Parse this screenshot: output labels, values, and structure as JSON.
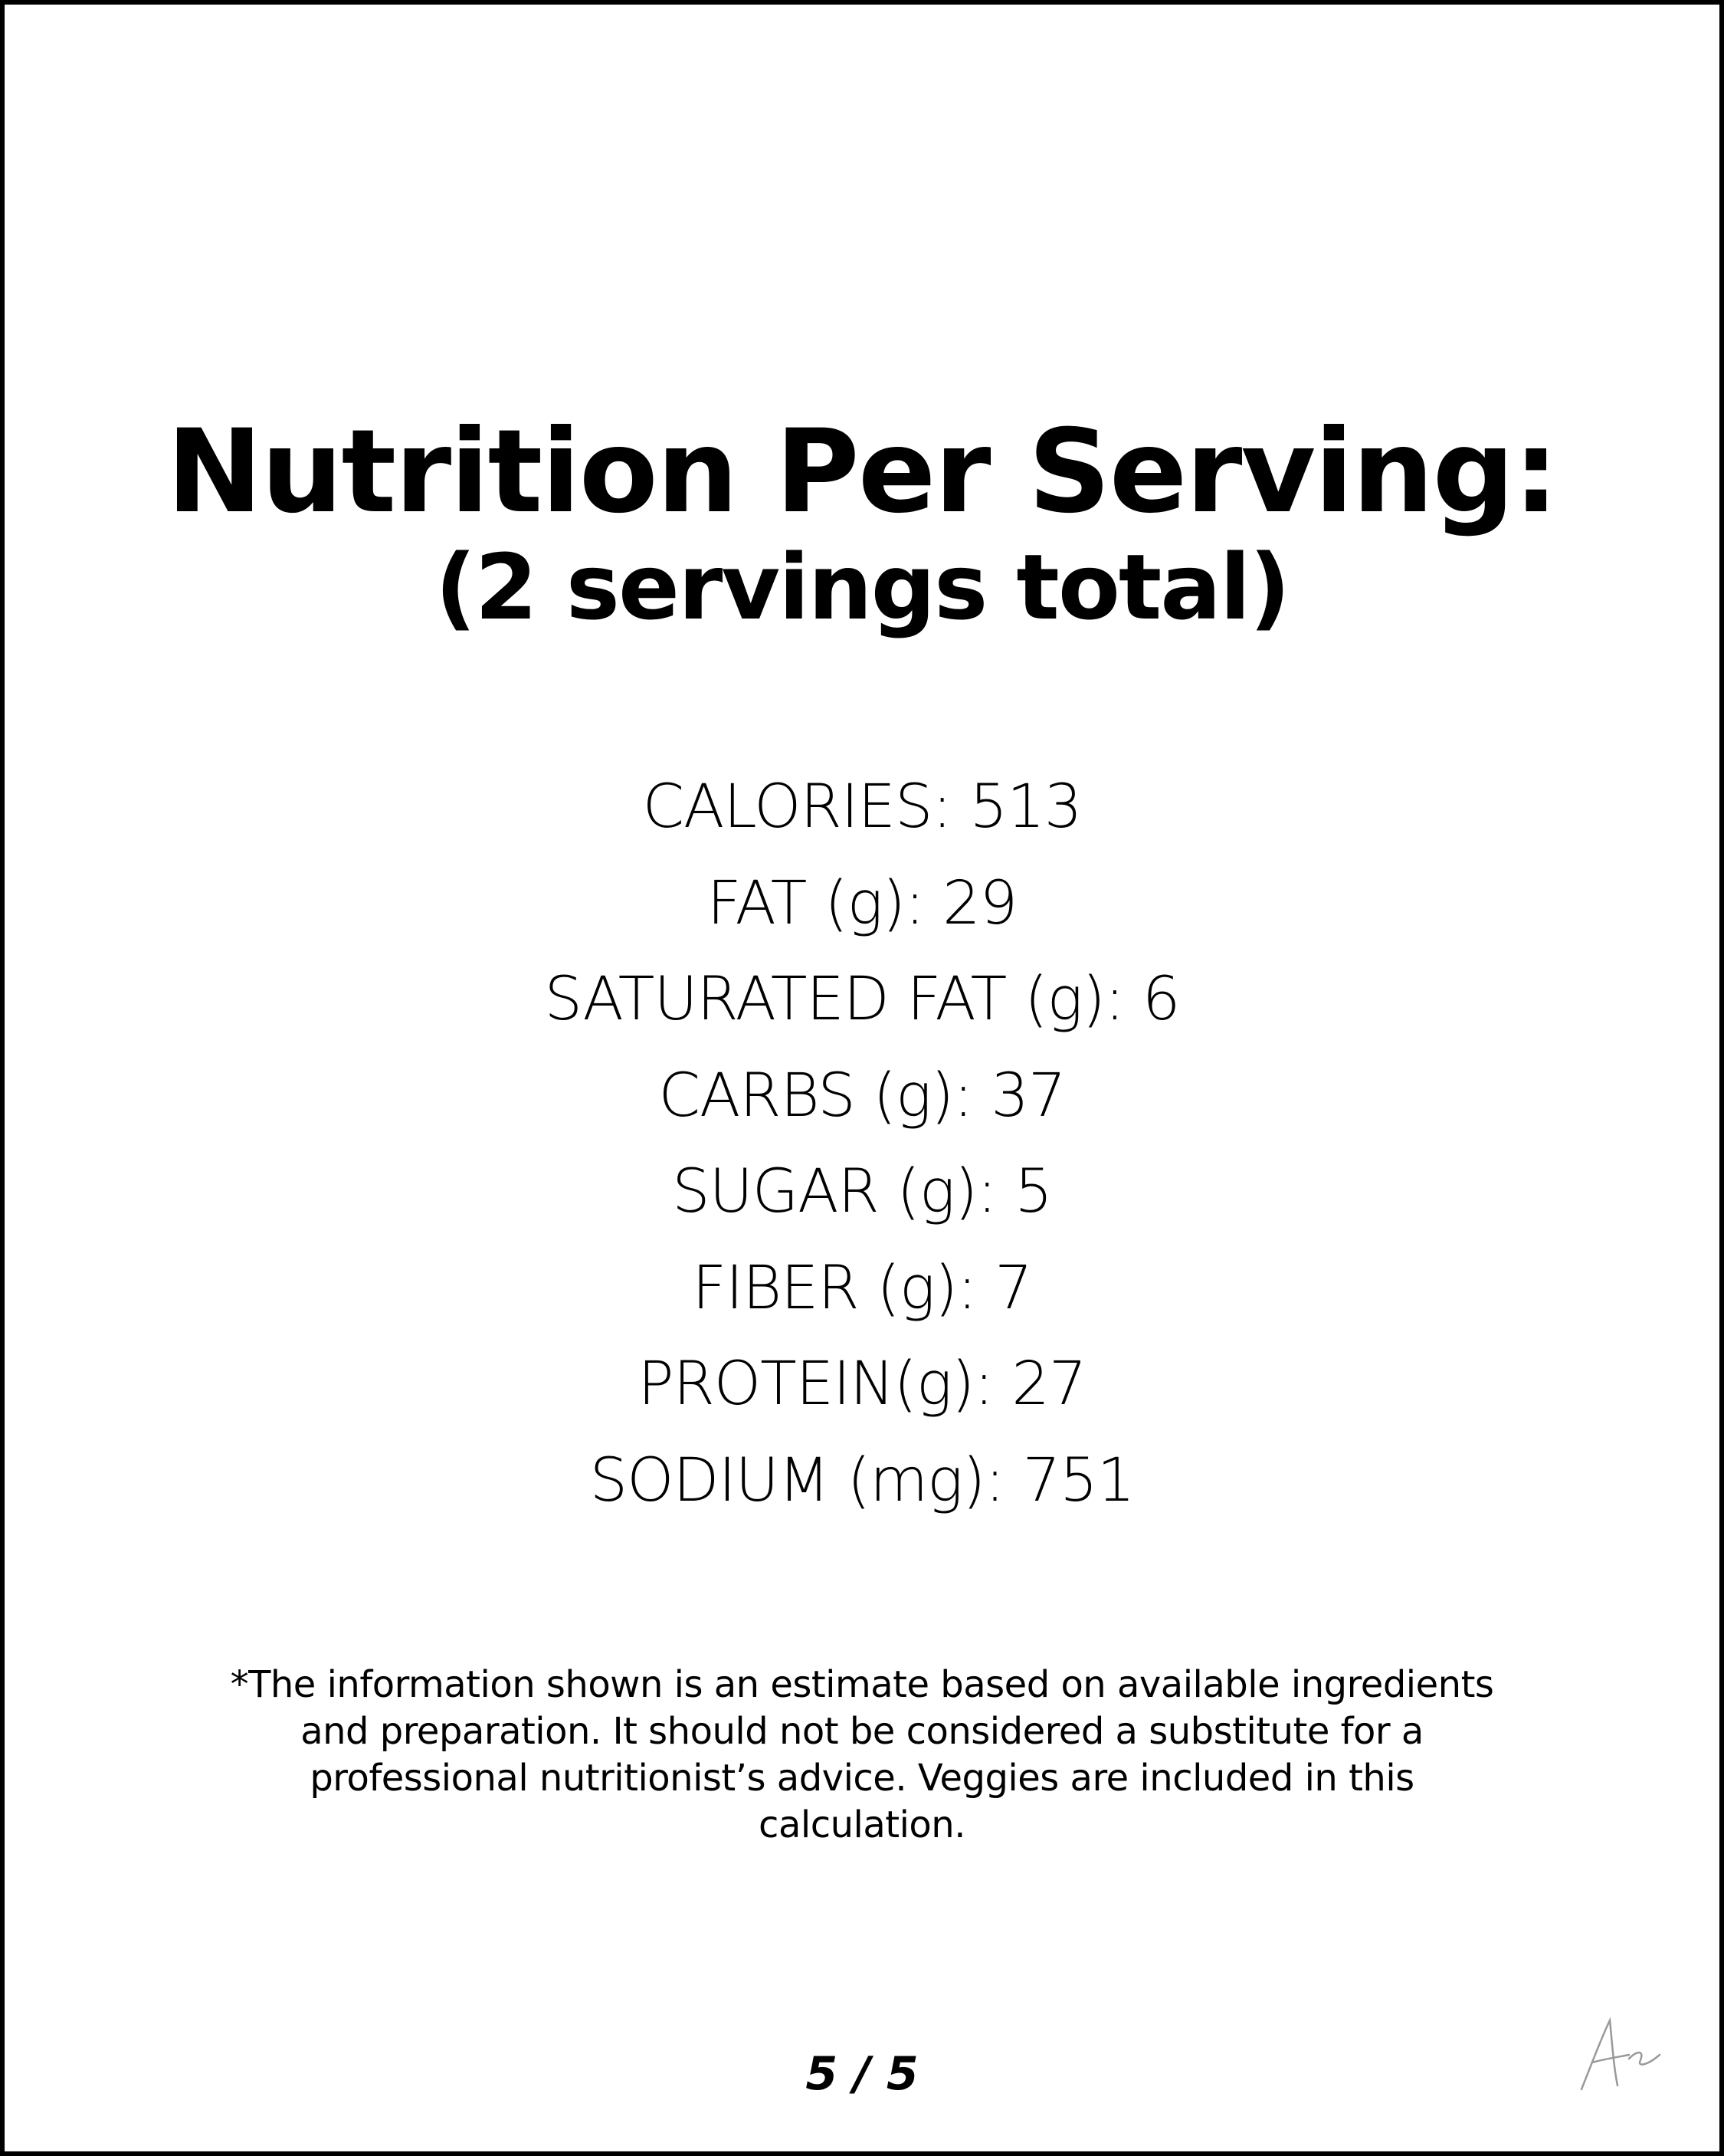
{
  "header": {
    "title": "Nutrition Per Serving:",
    "subtitle": "(2 servings total)"
  },
  "nutrition": [
    "CALORIES: 513",
    "FAT (g): 29",
    "SATURATED FAT (g): 6",
    "CARBS (g): 37",
    "SUGAR (g): 5",
    "FIBER (g): 7",
    "PROTEIN(g): 27",
    "SODIUM (mg): 751"
  ],
  "disclaimer": [
    "*The information shown is an estimate based on available ingredients",
    "and preparation. It should not be considered a substitute for a",
    "professional nutritionist’s advice. Veggies are included in this",
    "calculation."
  ],
  "footer": {
    "page": "5 / 5"
  }
}
